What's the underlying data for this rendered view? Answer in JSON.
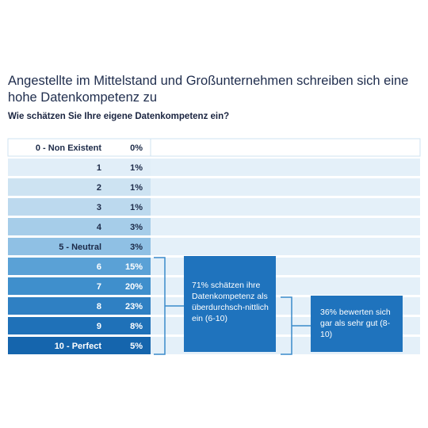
{
  "title": "Angestellte im Mittelstand und Großunternehmen schreiben sich eine hohe Datenkompetenz zu",
  "subtitle": "Wie schätzen Sie Ihre eigene Datenkompetenz ein?",
  "chart_data": {
    "type": "table",
    "categories": [
      "0 - Non Existent",
      "1",
      "2",
      "3",
      "4",
      "5 - Neutral",
      "6",
      "7",
      "8",
      "9",
      "10 - Perfect"
    ],
    "value_labels": [
      "0%",
      "1%",
      "1%",
      "1%",
      "3%",
      "3%",
      "15%",
      "20%",
      "23%",
      "8%",
      "5%"
    ],
    "values": [
      0,
      1,
      1,
      1,
      3,
      3,
      15,
      20,
      23,
      8,
      5
    ],
    "row_colors": [
      "#ffffff",
      "#e1eef8",
      "#cde3f2",
      "#bcd9ee",
      "#a6cde9",
      "#8fc0e4",
      "#5aa1d6",
      "#3f8fcc",
      "#2f80c3",
      "#1f71b8",
      "#1565ad"
    ],
    "annotations": [
      {
        "text": "71% schätzen ihre Datenkompetenz als überdurchsch-nittlich ein (6-10)",
        "range": [
          "6",
          "10 - Perfect"
        ]
      },
      {
        "text": "36% bewerten sich gar als sehr gut (8-10)",
        "range": [
          "8",
          "10 - Perfect"
        ]
      }
    ]
  }
}
